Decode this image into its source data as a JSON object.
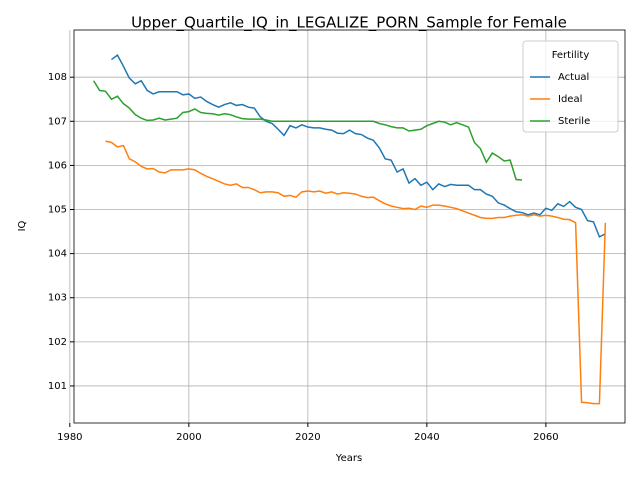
{
  "chart_data": {
    "type": "line",
    "title": "Upper_Quartile_IQ_in_LEGALIZE_PORN_Sample for Female",
    "xlabel": "Years",
    "ylabel": "IQ",
    "legend_title": "Fertility",
    "legend": "upper right",
    "grid": true,
    "x": [
      1984,
      1985,
      1986,
      1987,
      1988,
      1989,
      1990,
      1991,
      1992,
      1993,
      1994,
      1995,
      1996,
      1997,
      1998,
      1999,
      2000,
      2001,
      2002,
      2003,
      2004,
      2005,
      2006,
      2007,
      2008,
      2009,
      2010,
      2011,
      2012,
      2013,
      2014,
      2015,
      2016,
      2017,
      2018,
      2019,
      2020,
      2021,
      2022,
      2023,
      2024,
      2025,
      2026,
      2027,
      2028,
      2029,
      2030,
      2031,
      2032,
      2033,
      2034,
      2035,
      2036,
      2037,
      2038,
      2039,
      2040,
      2041,
      2042,
      2043,
      2044,
      2045,
      2046,
      2047,
      2048,
      2049,
      2050,
      2051,
      2052,
      2053,
      2054,
      2055,
      2056,
      2057,
      2058,
      2059,
      2060,
      2061,
      2062,
      2063,
      2064,
      2065,
      2066,
      2067,
      2068,
      2069,
      2070
    ],
    "series": [
      {
        "name": "Actual",
        "color": "#1f77b4",
        "values": [
          null,
          null,
          null,
          108.4,
          108.5,
          108.25,
          107.98,
          107.85,
          107.92,
          107.7,
          107.62,
          107.67,
          107.67,
          107.67,
          107.67,
          107.6,
          107.62,
          107.52,
          107.55,
          107.45,
          107.38,
          107.32,
          107.38,
          107.42,
          107.36,
          107.38,
          107.32,
          107.3,
          107.1,
          107.0,
          106.95,
          106.82,
          106.68,
          106.9,
          106.85,
          106.92,
          106.87,
          106.85,
          106.85,
          106.82,
          106.8,
          106.73,
          106.72,
          106.8,
          106.72,
          106.7,
          106.62,
          106.57,
          106.4,
          106.15,
          106.12,
          105.85,
          105.92,
          105.6,
          105.7,
          105.55,
          105.62,
          105.45,
          105.58,
          105.52,
          105.57,
          105.55,
          105.55,
          105.55,
          105.45,
          105.45,
          105.35,
          105.3,
          105.15,
          105.1,
          105.02,
          104.95,
          104.93,
          104.88,
          104.92,
          104.88,
          105.03,
          104.98,
          105.13,
          105.07,
          105.18,
          105.05,
          105.0,
          104.75,
          104.72,
          104.38,
          104.45
        ]
      },
      {
        "name": "Ideal",
        "color": "#ff7f0e",
        "values": [
          null,
          null,
          106.55,
          106.52,
          106.42,
          106.45,
          106.15,
          106.08,
          105.98,
          105.92,
          105.93,
          105.85,
          105.83,
          105.9,
          105.9,
          105.9,
          105.92,
          105.9,
          105.82,
          105.75,
          105.7,
          105.64,
          105.58,
          105.55,
          105.58,
          105.5,
          105.5,
          105.45,
          105.38,
          105.4,
          105.4,
          105.38,
          105.3,
          105.32,
          105.28,
          105.4,
          105.42,
          105.4,
          105.42,
          105.37,
          105.4,
          105.35,
          105.38,
          105.37,
          105.35,
          105.3,
          105.27,
          105.28,
          105.2,
          105.13,
          105.08,
          105.05,
          105.02,
          105.03,
          105.0,
          105.08,
          105.05,
          105.1,
          105.1,
          105.08,
          105.05,
          105.02,
          104.97,
          104.92,
          104.87,
          104.82,
          104.8,
          104.8,
          104.82,
          104.82,
          104.85,
          104.87,
          104.88,
          104.85,
          104.88,
          104.85,
          104.87,
          104.85,
          104.82,
          104.78,
          104.77,
          104.7,
          100.63,
          100.62,
          100.6,
          100.6,
          104.7
        ]
      },
      {
        "name": "Sterile",
        "color": "#2ca02c",
        "values": [
          107.92,
          107.7,
          107.68,
          107.5,
          107.57,
          107.4,
          107.3,
          107.15,
          107.07,
          107.02,
          107.03,
          107.07,
          107.03,
          107.05,
          107.07,
          107.2,
          107.22,
          107.28,
          107.2,
          107.18,
          107.17,
          107.14,
          107.17,
          107.15,
          107.1,
          107.06,
          107.05,
          107.05,
          107.05,
          107.03,
          107.0,
          107.0,
          107.0,
          107.0,
          107.0,
          107.0,
          107.0,
          107.0,
          107.0,
          107.0,
          107.0,
          107.0,
          107.0,
          107.0,
          107.0,
          107.0,
          107.0,
          107.0,
          106.95,
          106.92,
          106.88,
          106.85,
          106.85,
          106.78,
          106.8,
          106.82,
          106.9,
          106.95,
          107.0,
          106.98,
          106.92,
          106.97,
          106.92,
          106.87,
          106.52,
          106.38,
          106.07,
          106.28,
          106.2,
          106.1,
          106.12,
          105.68,
          105.67,
          null,
          null,
          null,
          null,
          null,
          null,
          null,
          null,
          null,
          null,
          null,
          null,
          null,
          null
        ]
      }
    ],
    "xlim": [
      1980.7,
      2073.3
    ],
    "xticks": [
      1980,
      2000,
      2020,
      2040,
      2060
    ],
    "ylim": [
      100.16,
      109.07
    ],
    "yticks": [
      101,
      102,
      103,
      104,
      105,
      106,
      107,
      108
    ]
  }
}
